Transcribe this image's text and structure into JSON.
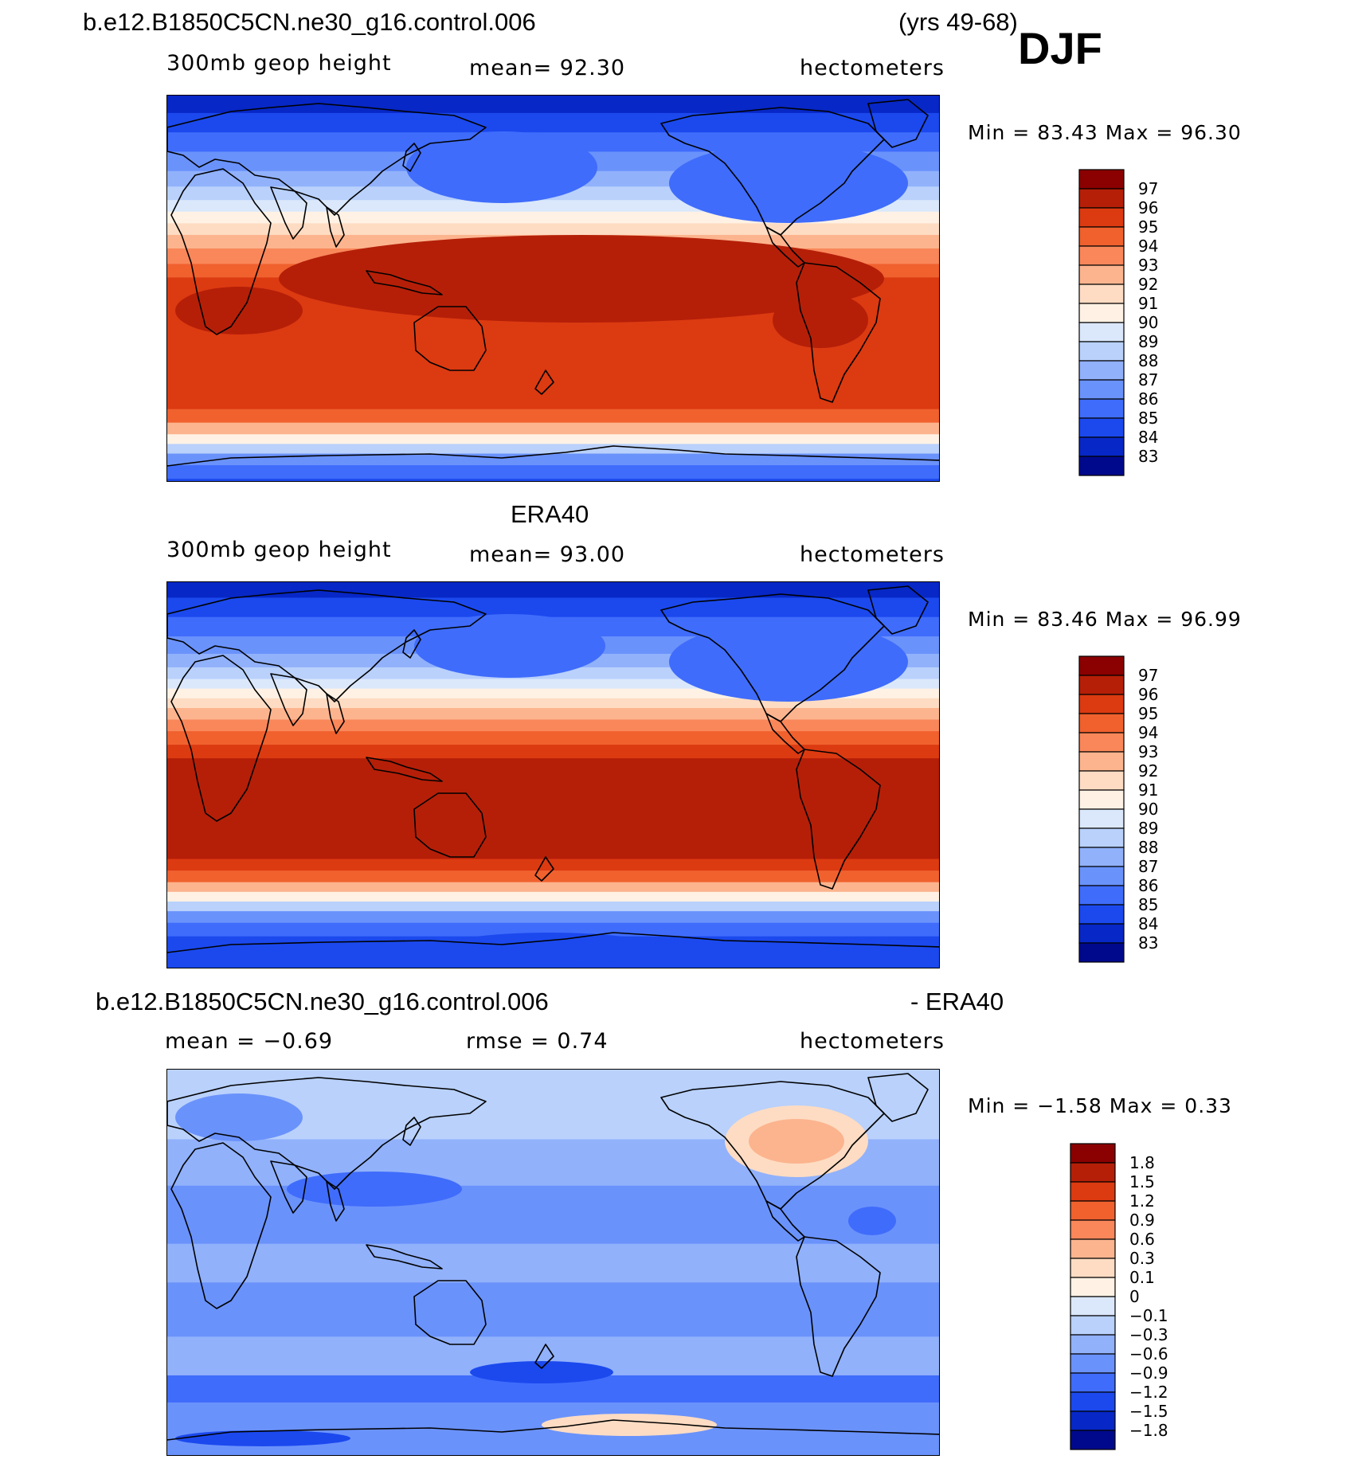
{
  "header": {
    "case_name": "b.e12.B1850C5CN.ne30_g16.control.006",
    "years": "(yrs 49-68)",
    "season": "DJF"
  },
  "panels": [
    {
      "id": "model",
      "title": "",
      "left_label": "300mb geop height",
      "center_label": "mean=   92.30",
      "right_label": "hectometers",
      "minmax": "Min =   83.43 Max =   96.30",
      "colorbar": [
        "97",
        "96",
        "95",
        "94",
        "93",
        "92",
        "91",
        "90",
        "89",
        "88",
        "87",
        "86",
        "85",
        "84",
        "83"
      ]
    },
    {
      "id": "obs",
      "title": "ERA40",
      "left_label": "300mb geop height",
      "center_label": "mean=   93.00",
      "right_label": "hectometers",
      "minmax": "Min =   83.46 Max =   96.99",
      "colorbar": [
        "97",
        "96",
        "95",
        "94",
        "93",
        "92",
        "91",
        "90",
        "89",
        "88",
        "87",
        "86",
        "85",
        "84",
        "83"
      ]
    },
    {
      "id": "diff",
      "title_left": "b.e12.B1850C5CN.ne30_g16.control.006",
      "title_right": "- ERA40",
      "left_label": "mean =   −0.69",
      "center_label": "rmse =    0.74",
      "right_label": "hectometers",
      "minmax": "Min =   −1.58 Max =    0.33",
      "colorbar": [
        "1.8",
        "1.5",
        "1.2",
        "0.9",
        "0.6",
        "0.3",
        "0.1",
        "0",
        "−0.1",
        "−0.3",
        "−0.6",
        "−0.9",
        "−1.2",
        "−1.5",
        "−1.8"
      ]
    }
  ],
  "colors": {
    "palette": [
      "#8b0000",
      "#b51f08",
      "#dc3a11",
      "#f0612e",
      "#f9875a",
      "#fcb48e",
      "#fddcc3",
      "#fff2e4",
      "#dbe8fb",
      "#b9d1fb",
      "#91b1fb",
      "#6a92fb",
      "#3f6cfb",
      "#1b49ee",
      "#0727c6",
      "#00098c"
    ],
    "coast": "#000000"
  }
}
